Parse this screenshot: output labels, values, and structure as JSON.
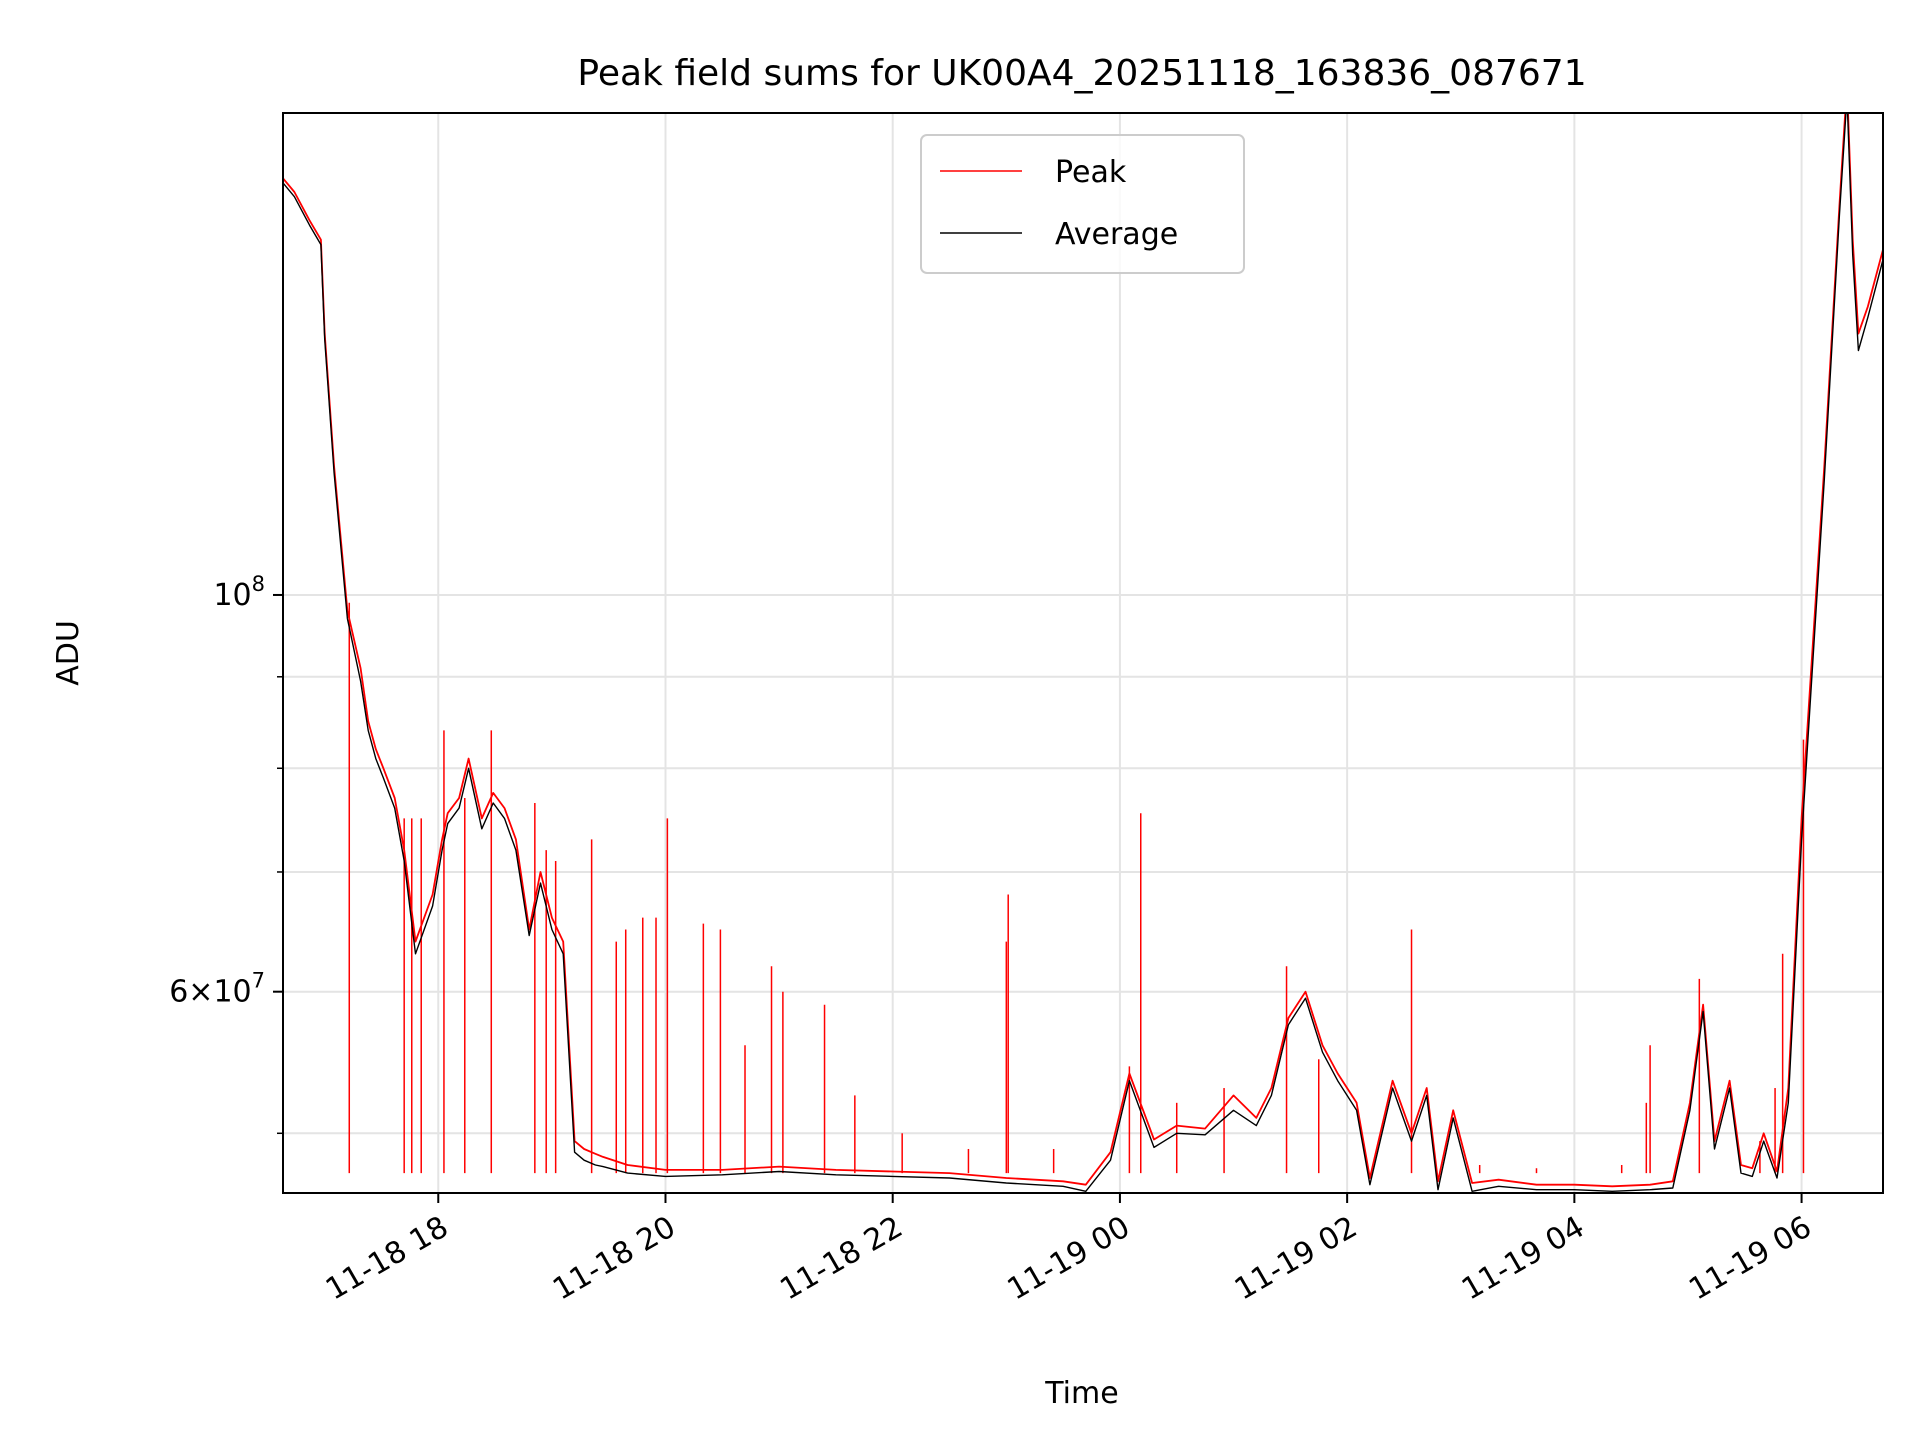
{
  "chart_data": {
    "type": "line",
    "title": "Peak field sums for UK00A4_20251118_163836_087671",
    "xlabel": "Time",
    "ylabel": "ADU",
    "yscale": "log",
    "xlim": [
      "2025-11-18 16:38",
      "2025-11-19 06:43"
    ],
    "ylim": [
      46300000,
      186000000
    ],
    "grid": true,
    "legend_position": "top-center",
    "x_ticks": [
      "2025-11-18 18:00",
      "2025-11-18 20:00",
      "2025-11-18 22:00",
      "2025-11-19 00:00",
      "2025-11-19 02:00",
      "2025-11-19 04:00",
      "2025-11-19 06:00"
    ],
    "x_tick_labels": [
      "11-18 18",
      "11-18 20",
      "11-18 22",
      "11-19 00",
      "11-19 02",
      "11-19 04",
      "11-19 06"
    ],
    "y_major_ticks": [
      {
        "value": 100000000,
        "base": "10",
        "exp": "8",
        "coef": ""
      },
      {
        "value": 60000000,
        "base": "10",
        "exp": "7",
        "coef": "6×"
      }
    ],
    "y_minor_ticks": [
      50000000,
      70000000,
      80000000,
      90000000
    ],
    "series": [
      {
        "name": "Peak",
        "color": "#ff0000",
        "x": [
          "2025-11-18 16:38",
          "2025-11-18 16:44",
          "2025-11-18 16:52",
          "2025-11-18 16:58",
          "2025-11-18 17:00",
          "2025-11-18 17:05",
          "2025-11-18 17:12",
          "2025-11-18 17:19",
          "2025-11-18 17:23",
          "2025-11-18 17:27",
          "2025-11-18 17:31",
          "2025-11-18 17:37",
          "2025-11-18 17:42",
          "2025-11-18 17:48",
          "2025-11-18 17:57",
          "2025-11-18 18:02",
          "2025-11-18 18:05",
          "2025-11-18 18:11",
          "2025-11-18 18:16",
          "2025-11-18 18:23",
          "2025-11-18 18:29",
          "2025-11-18 18:35",
          "2025-11-18 18:41",
          "2025-11-18 18:48",
          "2025-11-18 18:54",
          "2025-11-18 19:00",
          "2025-11-18 19:06",
          "2025-11-18 19:12",
          "2025-11-18 19:17",
          "2025-11-18 19:23",
          "2025-11-18 19:27",
          "2025-11-18 19:40",
          "2025-11-18 20:00",
          "2025-11-18 20:30",
          "2025-11-18 21:00",
          "2025-11-18 21:30",
          "2025-11-18 22:00",
          "2025-11-18 22:30",
          "2025-11-18 23:00",
          "2025-11-18 23:30",
          "2025-11-18 23:42",
          "2025-11-18 23:55",
          "2025-11-19 00:05",
          "2025-11-19 00:18",
          "2025-11-19 00:30",
          "2025-11-19 00:45",
          "2025-11-19 01:00",
          "2025-11-19 01:12",
          "2025-11-19 01:20",
          "2025-11-19 01:29",
          "2025-11-19 01:38",
          "2025-11-19 01:47",
          "2025-11-19 01:55",
          "2025-11-19 02:05",
          "2025-11-19 02:12",
          "2025-11-19 02:24",
          "2025-11-19 02:34",
          "2025-11-19 02:42",
          "2025-11-19 02:48",
          "2025-11-19 02:56",
          "2025-11-19 03:06",
          "2025-11-19 03:20",
          "2025-11-19 03:40",
          "2025-11-19 04:00",
          "2025-11-19 04:20",
          "2025-11-19 04:40",
          "2025-11-19 04:52",
          "2025-11-19 05:01",
          "2025-11-19 05:08",
          "2025-11-19 05:14",
          "2025-11-19 05:22",
          "2025-11-19 05:28",
          "2025-11-19 05:34",
          "2025-11-19 05:40",
          "2025-11-19 05:47",
          "2025-11-19 05:53",
          "2025-11-19 06:00",
          "2025-11-19 06:12",
          "2025-11-19 06:20",
          "2025-11-19 06:24",
          "2025-11-19 06:27",
          "2025-11-19 06:30",
          "2025-11-19 06:35",
          "2025-11-19 06:43"
        ],
        "y": [
          171000000,
          168000000,
          162000000,
          158000000,
          140000000,
          118000000,
          98000000,
          91000000,
          85000000,
          82000000,
          80000000,
          77000000,
          72000000,
          64000000,
          68000000,
          73000000,
          75500000,
          77000000,
          81000000,
          75000000,
          77500000,
          76000000,
          73000000,
          65000000,
          70000000,
          66000000,
          64000000,
          49500000,
          49000000,
          48700000,
          48500000,
          48000000,
          47700000,
          47700000,
          47900000,
          47700000,
          47600000,
          47500000,
          47200000,
          47000000,
          46800000,
          48800000,
          54000000,
          49600000,
          50500000,
          50300000,
          52500000,
          51000000,
          53000000,
          58000000,
          60000000,
          56000000,
          54000000,
          52000000,
          47200000,
          53500000,
          50000000,
          53000000,
          47000000,
          51500000,
          46900000,
          47100000,
          46800000,
          46800000,
          46700000,
          46800000,
          47000000,
          52000000,
          59000000,
          49500000,
          53500000,
          48000000,
          47800000,
          50000000,
          47600000,
          53000000,
          75000000,
          118000000,
          165000000,
          193000000,
          158000000,
          140000000,
          145000000,
          156000000
        ]
      },
      {
        "name": "Average",
        "color": "#000000",
        "x": [
          "2025-11-18 16:38",
          "2025-11-18 16:44",
          "2025-11-18 16:52",
          "2025-11-18 16:58",
          "2025-11-18 17:00",
          "2025-11-18 17:05",
          "2025-11-18 17:12",
          "2025-11-18 17:19",
          "2025-11-18 17:23",
          "2025-11-18 17:27",
          "2025-11-18 17:31",
          "2025-11-18 17:37",
          "2025-11-18 17:42",
          "2025-11-18 17:48",
          "2025-11-18 17:57",
          "2025-11-18 18:02",
          "2025-11-18 18:05",
          "2025-11-18 18:11",
          "2025-11-18 18:16",
          "2025-11-18 18:23",
          "2025-11-18 18:29",
          "2025-11-18 18:35",
          "2025-11-18 18:41",
          "2025-11-18 18:48",
          "2025-11-18 18:54",
          "2025-11-18 19:00",
          "2025-11-18 19:06",
          "2025-11-18 19:12",
          "2025-11-18 19:17",
          "2025-11-18 19:23",
          "2025-11-18 19:27",
          "2025-11-18 19:40",
          "2025-11-18 20:00",
          "2025-11-18 20:30",
          "2025-11-18 21:00",
          "2025-11-18 21:30",
          "2025-11-18 22:00",
          "2025-11-18 22:30",
          "2025-11-18 23:00",
          "2025-11-18 23:30",
          "2025-11-18 23:42",
          "2025-11-18 23:55",
          "2025-11-19 00:05",
          "2025-11-19 00:18",
          "2025-11-19 00:30",
          "2025-11-19 00:45",
          "2025-11-19 01:00",
          "2025-11-19 01:12",
          "2025-11-19 01:20",
          "2025-11-19 01:29",
          "2025-11-19 01:38",
          "2025-11-19 01:47",
          "2025-11-19 01:55",
          "2025-11-19 02:05",
          "2025-11-19 02:12",
          "2025-11-19 02:24",
          "2025-11-19 02:34",
          "2025-11-19 02:42",
          "2025-11-19 02:48",
          "2025-11-19 02:56",
          "2025-11-19 03:06",
          "2025-11-19 03:20",
          "2025-11-19 03:40",
          "2025-11-19 04:00",
          "2025-11-19 04:20",
          "2025-11-19 04:40",
          "2025-11-19 04:52",
          "2025-11-19 05:01",
          "2025-11-19 05:08",
          "2025-11-19 05:14",
          "2025-11-19 05:22",
          "2025-11-19 05:28",
          "2025-11-19 05:34",
          "2025-11-19 05:40",
          "2025-11-19 05:47",
          "2025-11-19 05:53",
          "2025-11-19 06:00",
          "2025-11-19 06:12",
          "2025-11-19 06:20",
          "2025-11-19 06:24",
          "2025-11-19 06:27",
          "2025-11-19 06:30",
          "2025-11-19 06:35",
          "2025-11-19 06:43"
        ],
        "y": [
          170000000,
          167000000,
          161000000,
          157000000,
          139000000,
          117000000,
          97000000,
          89500000,
          84000000,
          81000000,
          79000000,
          76000000,
          71000000,
          63000000,
          67000000,
          72000000,
          74500000,
          76000000,
          80000000,
          74000000,
          76500000,
          75000000,
          72000000,
          64500000,
          69000000,
          65000000,
          63000000,
          48800000,
          48300000,
          48000000,
          47900000,
          47500000,
          47300000,
          47400000,
          47600000,
          47400000,
          47300000,
          47200000,
          46900000,
          46700000,
          46400000,
          48300000,
          53500000,
          49100000,
          50000000,
          49900000,
          51500000,
          50500000,
          52500000,
          57500000,
          59500000,
          55500000,
          53500000,
          51500000,
          46800000,
          53000000,
          49500000,
          52500000,
          46500000,
          51000000,
          46400000,
          46700000,
          46500000,
          46500000,
          46400000,
          46500000,
          46600000,
          51500000,
          58500000,
          49000000,
          53000000,
          47500000,
          47300000,
          49500000,
          47200000,
          52000000,
          73000000,
          116000000,
          163000000,
          190000000,
          155000000,
          137000000,
          143000000,
          154000000
        ]
      }
    ],
    "spikes": {
      "series": "Peak",
      "color": "#ff0000",
      "x": [
        "2025-11-18 17:13",
        "2025-11-18 17:42",
        "2025-11-18 17:46",
        "2025-11-18 17:51",
        "2025-11-18 18:03",
        "2025-11-18 18:14",
        "2025-11-18 18:28",
        "2025-11-18 18:51",
        "2025-11-18 18:57",
        "2025-11-18 19:02",
        "2025-11-18 19:21",
        "2025-11-18 19:34",
        "2025-11-18 19:39",
        "2025-11-18 19:48",
        "2025-11-18 19:55",
        "2025-11-18 20:01",
        "2025-11-18 20:20",
        "2025-11-18 20:29",
        "2025-11-18 20:42",
        "2025-11-18 20:56",
        "2025-11-18 21:02",
        "2025-11-18 21:24",
        "2025-11-18 21:40",
        "2025-11-18 22:05",
        "2025-11-18 22:40",
        "2025-11-18 23:00",
        "2025-11-18 23:01",
        "2025-11-18 23:25",
        "2025-11-19 00:05",
        "2025-11-19 00:11",
        "2025-11-19 00:30",
        "2025-11-19 00:55",
        "2025-11-19 01:28",
        "2025-11-19 01:45",
        "2025-11-19 02:34",
        "2025-11-19 03:10",
        "2025-11-19 03:40",
        "2025-11-19 04:25",
        "2025-11-19 04:38",
        "2025-11-19 04:40",
        "2025-11-19 05:06",
        "2025-11-19 05:38",
        "2025-11-19 05:46",
        "2025-11-19 05:50",
        "2025-11-19 06:01"
      ],
      "y": [
        99000000,
        75000000,
        75000000,
        75000000,
        84000000,
        77000000,
        84000000,
        76500000,
        72000000,
        71000000,
        73000000,
        64000000,
        65000000,
        66000000,
        66000000,
        75000000,
        65500000,
        65000000,
        56000000,
        62000000,
        60000000,
        59000000,
        52500000,
        50000000,
        49000000,
        64000000,
        68000000,
        49000000,
        54500000,
        75500000,
        52000000,
        53000000,
        62000000,
        55000000,
        65000000,
        48000000,
        47800000,
        48000000,
        52000000,
        56000000,
        61000000,
        49500000,
        53000000,
        63000000,
        83000000
      ]
    }
  }
}
